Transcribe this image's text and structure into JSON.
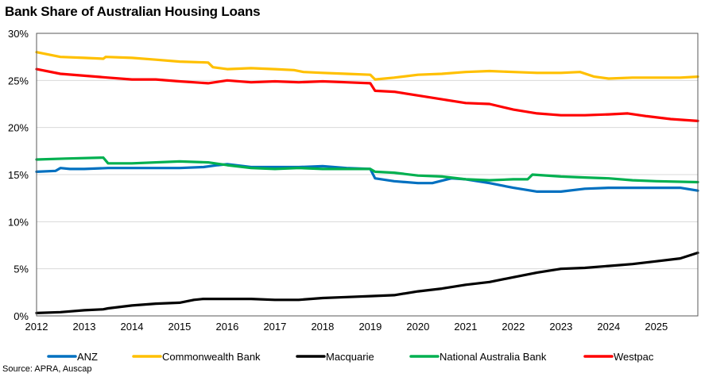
{
  "chart_data": {
    "type": "line",
    "title": "Bank Share of Australian Housing Loans",
    "source": "Source: APRA, Auscap",
    "xlabel": "",
    "ylabel": "",
    "xlim": [
      2012,
      2025.87
    ],
    "ylim": [
      0,
      30
    ],
    "x_ticks": [
      2012,
      2013,
      2014,
      2015,
      2016,
      2017,
      2018,
      2019,
      2020,
      2021,
      2022,
      2023,
      2024,
      2025
    ],
    "x_tick_labels": [
      "2012",
      "2013",
      "2014",
      "2015",
      "2016",
      "2017",
      "2018",
      "2019",
      "2020",
      "2021",
      "2022",
      "2023",
      "2024",
      "2025"
    ],
    "y_ticks": [
      0,
      5,
      10,
      15,
      20,
      25,
      30
    ],
    "y_tick_labels": [
      "0%",
      "5%",
      "10%",
      "15%",
      "20%",
      "25%",
      "30%"
    ],
    "grid": "horizontal",
    "legend_position": "bottom",
    "series": [
      {
        "name": "ANZ",
        "color": "#0070C0",
        "points": [
          [
            2012,
            15.3
          ],
          [
            2012.4,
            15.4
          ],
          [
            2012.5,
            15.7
          ],
          [
            2012.7,
            15.6
          ],
          [
            2013,
            15.6
          ],
          [
            2013.5,
            15.7
          ],
          [
            2014,
            15.7
          ],
          [
            2014.5,
            15.7
          ],
          [
            2015,
            15.7
          ],
          [
            2015.5,
            15.8
          ],
          [
            2015.8,
            16.0
          ],
          [
            2016,
            16.1
          ],
          [
            2016.5,
            15.8
          ],
          [
            2017,
            15.8
          ],
          [
            2017.5,
            15.8
          ],
          [
            2018,
            15.9
          ],
          [
            2018.5,
            15.7
          ],
          [
            2019,
            15.6
          ],
          [
            2019.1,
            14.6
          ],
          [
            2019.5,
            14.3
          ],
          [
            2020,
            14.1
          ],
          [
            2020.3,
            14.1
          ],
          [
            2020.7,
            14.6
          ],
          [
            2021,
            14.5
          ],
          [
            2021.5,
            14.1
          ],
          [
            2022,
            13.6
          ],
          [
            2022.5,
            13.2
          ],
          [
            2023,
            13.2
          ],
          [
            2023.5,
            13.5
          ],
          [
            2024,
            13.6
          ],
          [
            2024.5,
            13.6
          ],
          [
            2025,
            13.6
          ],
          [
            2025.5,
            13.6
          ],
          [
            2025.87,
            13.3
          ]
        ]
      },
      {
        "name": "Commonwealth Bank",
        "color": "#FFC000",
        "points": [
          [
            2012,
            28.0
          ],
          [
            2012.5,
            27.5
          ],
          [
            2013,
            27.4
          ],
          [
            2013.4,
            27.3
          ],
          [
            2013.45,
            27.5
          ],
          [
            2014,
            27.4
          ],
          [
            2014.5,
            27.2
          ],
          [
            2015,
            27.0
          ],
          [
            2015.6,
            26.9
          ],
          [
            2015.7,
            26.4
          ],
          [
            2016,
            26.2
          ],
          [
            2016.5,
            26.3
          ],
          [
            2017,
            26.2
          ],
          [
            2017.4,
            26.1
          ],
          [
            2017.6,
            25.9
          ],
          [
            2018,
            25.8
          ],
          [
            2018.5,
            25.7
          ],
          [
            2019,
            25.6
          ],
          [
            2019.1,
            25.1
          ],
          [
            2019.5,
            25.3
          ],
          [
            2020,
            25.6
          ],
          [
            2020.5,
            25.7
          ],
          [
            2021,
            25.9
          ],
          [
            2021.5,
            26.0
          ],
          [
            2022,
            25.9
          ],
          [
            2022.5,
            25.8
          ],
          [
            2023,
            25.8
          ],
          [
            2023.4,
            25.9
          ],
          [
            2023.7,
            25.4
          ],
          [
            2024,
            25.2
          ],
          [
            2024.5,
            25.3
          ],
          [
            2025,
            25.3
          ],
          [
            2025.5,
            25.3
          ],
          [
            2025.87,
            25.4
          ]
        ]
      },
      {
        "name": "Macquarie",
        "color": "#000000",
        "points": [
          [
            2012,
            0.3
          ],
          [
            2012.5,
            0.4
          ],
          [
            2013,
            0.6
          ],
          [
            2013.4,
            0.7
          ],
          [
            2013.5,
            0.8
          ],
          [
            2014,
            1.1
          ],
          [
            2014.5,
            1.3
          ],
          [
            2015,
            1.4
          ],
          [
            2015.3,
            1.7
          ],
          [
            2015.5,
            1.8
          ],
          [
            2016,
            1.8
          ],
          [
            2016.5,
            1.8
          ],
          [
            2017,
            1.7
          ],
          [
            2017.5,
            1.7
          ],
          [
            2018,
            1.9
          ],
          [
            2018.5,
            2.0
          ],
          [
            2019,
            2.1
          ],
          [
            2019.5,
            2.2
          ],
          [
            2020,
            2.6
          ],
          [
            2020.5,
            2.9
          ],
          [
            2021,
            3.3
          ],
          [
            2021.5,
            3.6
          ],
          [
            2022,
            4.1
          ],
          [
            2022.5,
            4.6
          ],
          [
            2023,
            5.0
          ],
          [
            2023.5,
            5.1
          ],
          [
            2024,
            5.3
          ],
          [
            2024.5,
            5.5
          ],
          [
            2025,
            5.8
          ],
          [
            2025.5,
            6.1
          ],
          [
            2025.87,
            6.7
          ]
        ]
      },
      {
        "name": "National Australia Bank",
        "color": "#00B050",
        "points": [
          [
            2012,
            16.6
          ],
          [
            2012.6,
            16.7
          ],
          [
            2013.4,
            16.8
          ],
          [
            2013.5,
            16.2
          ],
          [
            2014,
            16.2
          ],
          [
            2015,
            16.4
          ],
          [
            2015.6,
            16.3
          ],
          [
            2016,
            16.0
          ],
          [
            2016.5,
            15.7
          ],
          [
            2017,
            15.6
          ],
          [
            2017.5,
            15.7
          ],
          [
            2018,
            15.6
          ],
          [
            2018.5,
            15.6
          ],
          [
            2019,
            15.6
          ],
          [
            2019.1,
            15.3
          ],
          [
            2019.5,
            15.2
          ],
          [
            2020,
            14.9
          ],
          [
            2020.5,
            14.8
          ],
          [
            2021,
            14.5
          ],
          [
            2021.5,
            14.4
          ],
          [
            2022,
            14.5
          ],
          [
            2022.3,
            14.5
          ],
          [
            2022.4,
            15.0
          ],
          [
            2023,
            14.8
          ],
          [
            2023.5,
            14.7
          ],
          [
            2024,
            14.6
          ],
          [
            2024.5,
            14.4
          ],
          [
            2025,
            14.3
          ],
          [
            2025.87,
            14.2
          ]
        ]
      },
      {
        "name": "Westpac",
        "color": "#FF0000",
        "points": [
          [
            2012,
            26.2
          ],
          [
            2012.5,
            25.7
          ],
          [
            2013,
            25.5
          ],
          [
            2013.5,
            25.3
          ],
          [
            2014,
            25.1
          ],
          [
            2014.5,
            25.1
          ],
          [
            2015,
            24.9
          ],
          [
            2015.6,
            24.7
          ],
          [
            2016,
            25.0
          ],
          [
            2016.5,
            24.8
          ],
          [
            2017,
            24.9
          ],
          [
            2017.5,
            24.8
          ],
          [
            2018,
            24.9
          ],
          [
            2018.5,
            24.8
          ],
          [
            2019,
            24.7
          ],
          [
            2019.1,
            23.9
          ],
          [
            2019.5,
            23.8
          ],
          [
            2020,
            23.4
          ],
          [
            2020.5,
            23.0
          ],
          [
            2021,
            22.6
          ],
          [
            2021.5,
            22.5
          ],
          [
            2022,
            21.9
          ],
          [
            2022.5,
            21.5
          ],
          [
            2023,
            21.3
          ],
          [
            2023.5,
            21.3
          ],
          [
            2024,
            21.4
          ],
          [
            2024.4,
            21.5
          ],
          [
            2024.8,
            21.2
          ],
          [
            2025.3,
            20.9
          ],
          [
            2025.87,
            20.7
          ]
        ]
      }
    ]
  }
}
